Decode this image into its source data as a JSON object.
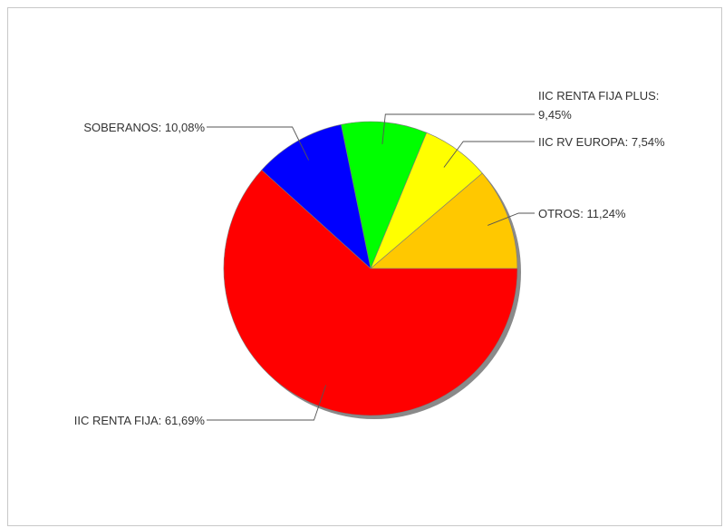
{
  "chart_data": {
    "type": "pie",
    "start_angle_deg": 0,
    "direction": "counterclockwise",
    "shadow": true,
    "slices": [
      {
        "label": "OTROS",
        "value": 11.24,
        "label_text": "OTROS: 11,24%",
        "color": "#ffc800"
      },
      {
        "label": "IIC RV EUROPA",
        "value": 7.54,
        "label_text": "IIC RV EUROPA: 7,54%",
        "color": "#ffff00"
      },
      {
        "label": "IIC RENTA FIJA PLUS",
        "value": 9.45,
        "label_text": "IIC RENTA FIJA PLUS:",
        "label_text_2": "9,45%",
        "color": "#00ff00"
      },
      {
        "label": "SOBERANOS",
        "value": 10.08,
        "label_text": "SOBERANOS: 10,08%",
        "color": "#0000ff"
      },
      {
        "label": "IIC RENTA FIJA",
        "value": 61.69,
        "label_text": "IIC RENTA FIJA: 61,69%",
        "color": "#ff0000"
      }
    ]
  }
}
